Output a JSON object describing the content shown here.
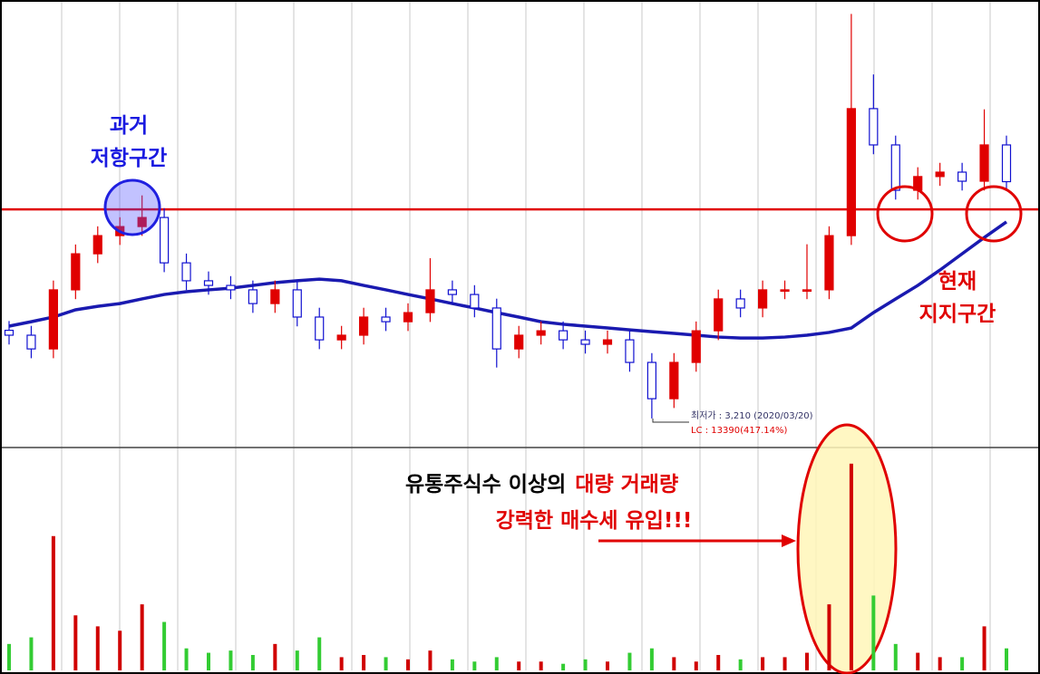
{
  "chart_data": {
    "type": "candlestick",
    "ylim": [
      2000,
      21200
    ],
    "open": [
      7000,
      6790,
      6200,
      8740,
      10290,
      11070,
      11460,
      11850,
      9900,
      9130,
      8930,
      8740,
      8150,
      8740,
      7570,
      6590,
      6790,
      7570,
      7370,
      7760,
      8740,
      8540,
      7960,
      6200,
      6790,
      6980,
      6590,
      6400,
      6590,
      5620,
      4060,
      5620,
      6980,
      8350,
      7960,
      8740,
      8740,
      8740,
      11070,
      16530,
      14970,
      13020,
      13610,
      13800,
      13410,
      14970
    ],
    "high": [
      7400,
      7190,
      9140,
      10690,
      11470,
      11860,
      12800,
      12250,
      10300,
      9530,
      9330,
      9140,
      9140,
      9140,
      7970,
      7190,
      7970,
      7970,
      8160,
      10100,
      9140,
      8940,
      8360,
      7190,
      7380,
      7380,
      6990,
      6990,
      6990,
      6020,
      6020,
      7380,
      8750,
      8750,
      9140,
      9140,
      10700,
      11470,
      20600,
      18000,
      15370,
      14010,
      14200,
      14200,
      16500,
      15370
    ],
    "low": [
      6390,
      5800,
      5800,
      8340,
      9890,
      10670,
      11060,
      9500,
      8730,
      8530,
      8340,
      7750,
      7750,
      7170,
      6190,
      6190,
      6390,
      6970,
      6970,
      7360,
      8140,
      7560,
      5400,
      5800,
      6390,
      6190,
      6000,
      6000,
      5220,
      3210,
      3660,
      5220,
      6580,
      7560,
      7560,
      8340,
      8340,
      8340,
      10670,
      14570,
      12620,
      12620,
      13210,
      13010,
      13010,
      12990
    ],
    "close": [
      6790,
      6200,
      8740,
      10290,
      11070,
      11460,
      11850,
      9900,
      9130,
      8930,
      8740,
      8150,
      8740,
      7570,
      6590,
      6790,
      7570,
      7370,
      7760,
      8740,
      8540,
      7960,
      6200,
      6790,
      6980,
      6590,
      6400,
      6590,
      5620,
      4060,
      5620,
      6980,
      8350,
      7960,
      8740,
      8740,
      8740,
      11070,
      16530,
      14970,
      13020,
      13610,
      13800,
      13410,
      14970,
      13390
    ],
    "up_color": "#e00000",
    "down_color": "#1010d0",
    "ma": {
      "color": "#1a1ab0",
      "values": [
        7180,
        7370,
        7570,
        7880,
        8030,
        8150,
        8350,
        8540,
        8660,
        8740,
        8810,
        8930,
        9050,
        9130,
        9200,
        9130,
        8930,
        8740,
        8540,
        8350,
        8150,
        7960,
        7760,
        7570,
        7370,
        7260,
        7180,
        7100,
        7020,
        6940,
        6870,
        6790,
        6710,
        6670,
        6670,
        6710,
        6790,
        6910,
        7100,
        7760,
        8350,
        8930,
        9590,
        10290,
        10990,
        11660
      ]
    },
    "resistance": {
      "value": 12200,
      "color": "#e00000"
    },
    "volume": [
      120,
      150,
      610,
      250,
      200,
      180,
      300,
      220,
      100,
      80,
      90,
      70,
      120,
      90,
      150,
      60,
      70,
      60,
      50,
      90,
      50,
      40,
      60,
      40,
      40,
      30,
      50,
      40,
      80,
      100,
      60,
      40,
      70,
      50,
      60,
      60,
      80,
      300,
      939,
      340,
      120,
      80,
      60,
      60,
      200,
      100
    ],
    "volume_ylim": [
      0,
      1000
    ],
    "volume_up_color": "#d00000",
    "volume_down_color": "#33cc33"
  },
  "annotations": {
    "resistance_label": [
      "과거",
      "저항구간"
    ],
    "support_label": [
      "현재",
      "지지구간"
    ],
    "low_label": "최저가 : 3,210 (2020/03/20)",
    "lc_label": "LC : 13390(417.14%)",
    "volume_note_black": "유통주식수 이상의",
    "volume_note_red": "대량 거래량",
    "volume_note_line2": "강력한 매수세 유입!!!"
  }
}
